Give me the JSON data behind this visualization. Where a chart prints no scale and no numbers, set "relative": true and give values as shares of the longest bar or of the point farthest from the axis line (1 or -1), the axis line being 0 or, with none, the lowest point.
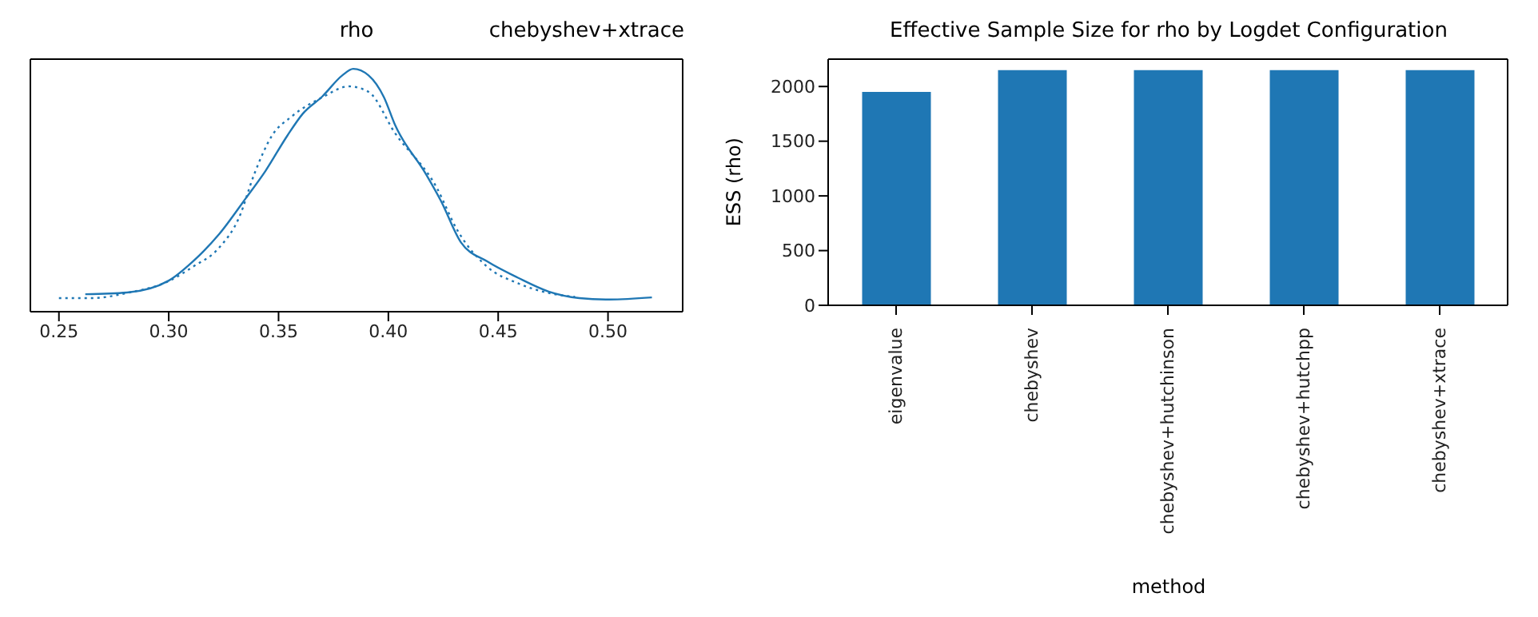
{
  "chart_data": [
    {
      "type": "line",
      "title": "rho",
      "subtitle": "chebyshev+xtrace",
      "relative": true,
      "tick_labels": "x",
      "xlim": [
        0.237,
        0.534
      ],
      "xticks": [
        0.25,
        {
          "value": 0.3,
          "label": "0.30"
        },
        0.35,
        {
          "value": 0.4,
          "label": "0.40"
        },
        0.45,
        {
          "value": 0.5,
          "label": "0.50"
        }
      ],
      "series": [
        {
          "color": "#1f77b4",
          "line_style": "solid",
          "x": [
            0.262,
            0.281,
            0.3,
            0.311,
            0.323,
            0.335,
            0.344,
            0.354,
            0.361,
            0.37,
            0.379,
            0.384,
            0.391,
            0.398,
            0.403,
            0.417,
            0.424,
            0.433,
            0.445,
            0.459,
            0.473,
            0.487,
            0.499,
            0.52
          ],
          "values": [
            0.072,
            0.079,
            0.128,
            0.207,
            0.32,
            0.466,
            0.579,
            0.725,
            0.815,
            0.887,
            0.973,
            1,
            0.973,
            0.883,
            0.77,
            0.568,
            0.455,
            0.286,
            0.207,
            0.14,
            0.083,
            0.056,
            0.05,
            0.059
          ]
        },
        {
          "color": "#1f77b4",
          "line_style": "dotted",
          "x": [
            0.25,
            0.265,
            0.281,
            0.3,
            0.311,
            0.323,
            0.332,
            0.339,
            0.347,
            0.356,
            0.37,
            0.382,
            0.391,
            0.403,
            0.422,
            0.431,
            0.445,
            0.459,
            0.473,
            0.485
          ],
          "values": [
            0.056,
            0.056,
            0.077,
            0.126,
            0.185,
            0.264,
            0.387,
            0.568,
            0.725,
            0.804,
            0.883,
            0.928,
            0.905,
            0.736,
            0.511,
            0.342,
            0.185,
            0.117,
            0.077,
            0.061
          ]
        }
      ]
    },
    {
      "type": "bar",
      "title": "Effective Sample Size for rho by Logdet Configuration",
      "xlabel": "method",
      "ylabel": "ESS (rho)",
      "categories": [
        "eigenvalue",
        "chebyshev",
        "chebyshev+hutchinson",
        "chebyshev+hutchpp",
        "chebyshev+xtrace"
      ],
      "values": [
        1950,
        2150,
        2150,
        2150,
        2150
      ],
      "color": "#1f77b4",
      "ylim": [
        0,
        2250
      ],
      "yticks": [
        0,
        500,
        1000,
        1500,
        2000
      ]
    }
  ]
}
